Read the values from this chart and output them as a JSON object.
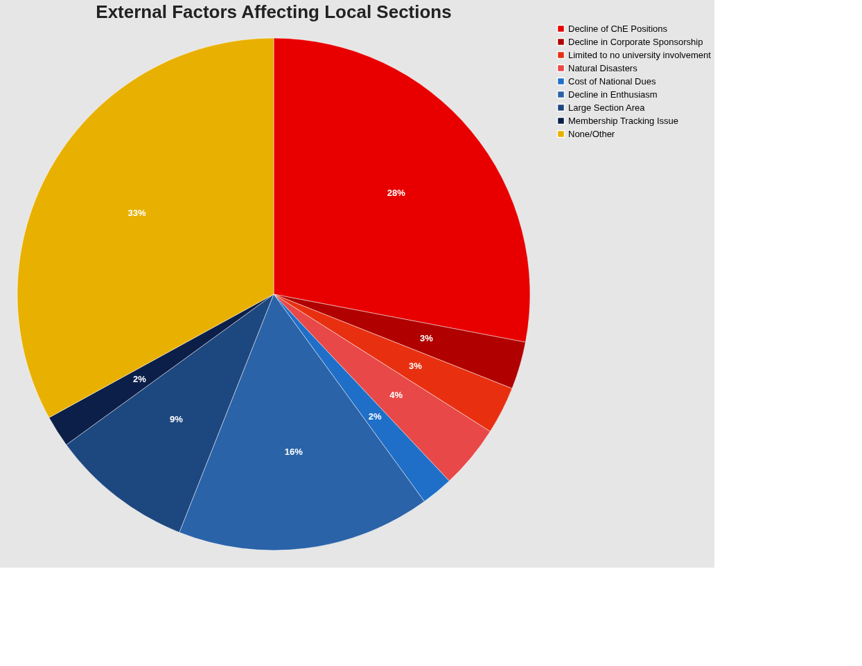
{
  "chart_data": {
    "type": "pie",
    "title": "External Factors Affecting Local Sections",
    "categories": [
      "Decline of ChE Positions",
      "Decline in Corporate Sponsorship",
      "Limited to no university involvement",
      "Natural Disasters",
      "Cost of National Dues",
      "Decline in Enthusiasm",
      "Large Section Area",
      "Membership Tracking Issue",
      "None/Other"
    ],
    "values": [
      28,
      3,
      3,
      4,
      2,
      16,
      9,
      2,
      33
    ],
    "value_labels": [
      "28%",
      "3%",
      "3%",
      "4%",
      "2%",
      "16%",
      "9%",
      "2%",
      "33%"
    ],
    "colors": [
      "#e80000",
      "#b00000",
      "#e83010",
      "#e84848",
      "#1f6fc8",
      "#2a63a8",
      "#1d477f",
      "#0c1f48",
      "#e8b000"
    ],
    "legend": "right"
  }
}
